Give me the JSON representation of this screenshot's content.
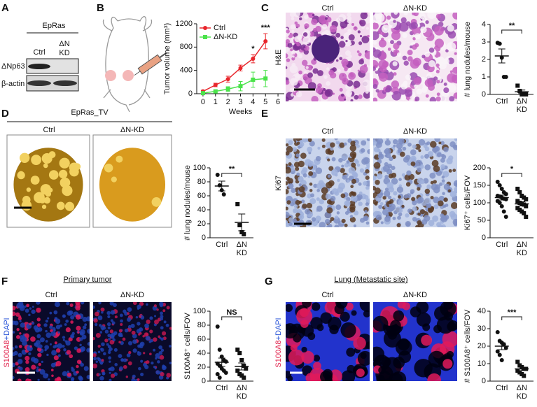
{
  "panel_labels": [
    "A",
    "B",
    "C",
    "D",
    "E",
    "F",
    "G"
  ],
  "blot": {
    "group": "EpRas",
    "lanes": [
      "Ctrl",
      "ΔN",
      "KD"
    ],
    "rows": [
      "ΔNp63",
      "β-actin"
    ]
  },
  "images": {
    "C": {
      "columns": [
        "Ctrl",
        "ΔN-KD"
      ],
      "side": "H&E"
    },
    "D": {
      "group": "EpRas_TV",
      "columns": [
        "Ctrl",
        "ΔN-KD"
      ]
    },
    "E": {
      "columns": [
        "Ctrl",
        "ΔN-KD"
      ],
      "side": "Ki67"
    },
    "F": {
      "title": "Primary tumor",
      "columns": [
        "Ctrl",
        "ΔN-KD"
      ],
      "side": [
        "S100A8",
        "+DAPI"
      ]
    },
    "G": {
      "title": "Lung (Metastatic site)",
      "columns": [
        "Ctrl",
        "ΔN-KD"
      ],
      "side": [
        "S100A8",
        "+DAPI"
      ]
    }
  },
  "chart_data": [
    {
      "type": "line",
      "x_label": "Weeks",
      "y_label": "Tumor volume (mm³)",
      "x": [
        0,
        1,
        2,
        3,
        4,
        5
      ],
      "xlim": [
        -0.5,
        6.5
      ],
      "xticks": [
        0,
        1,
        2,
        3,
        4,
        5,
        6
      ],
      "ylim": [
        0,
        1200
      ],
      "yticks": [
        0,
        400,
        800,
        1200
      ],
      "series": [
        {
          "name": "Ctrl",
          "color": "#e8262c",
          "marker": "circle",
          "values": [
            40,
            150,
            250,
            440,
            600,
            900
          ],
          "errors": [
            20,
            30,
            50,
            50,
            70,
            130
          ]
        },
        {
          "name": "ΔN-KD",
          "color": "#4be34b",
          "marker": "square",
          "values": [
            10,
            40,
            80,
            130,
            240,
            260
          ],
          "errors": [
            10,
            20,
            40,
            80,
            130,
            140
          ]
        }
      ],
      "annotations": [
        {
          "x": 4,
          "text": "*"
        },
        {
          "x": 5,
          "text": "***"
        }
      ]
    },
    {
      "type": "dot",
      "y_label": "# lung nodules/mouse",
      "categories": [
        "Ctrl",
        "ΔN KD"
      ],
      "ylim": [
        0,
        4
      ],
      "yticks": [
        0,
        1,
        2,
        3,
        4
      ],
      "significance": "**",
      "groups": [
        {
          "marker": "circle",
          "values": [
            2.95,
            2.9,
            2.1,
            1.0,
            1.0
          ],
          "mean": 2.2,
          "sem": 0.4
        },
        {
          "marker": "square",
          "values": [
            0.5,
            0.2,
            0,
            0,
            0
          ],
          "mean": 0.15,
          "sem": 0.1
        }
      ]
    },
    {
      "type": "dot",
      "y_label": "# lung nodules/mouse",
      "categories": [
        "Ctrl",
        "ΔN KD"
      ],
      "ylim": [
        0,
        100
      ],
      "yticks": [
        0,
        20,
        40,
        60,
        80,
        100
      ],
      "significance": "**",
      "groups": [
        {
          "marker": "circle",
          "values": [
            90,
            75,
            68,
            62
          ],
          "mean": 74,
          "sem": 7
        },
        {
          "marker": "square",
          "values": [
            48,
            18,
            8,
            5
          ],
          "mean": 22,
          "sem": 12
        }
      ]
    },
    {
      "type": "dot",
      "y_label": "Ki67⁺ cells/FOV",
      "categories": [
        "Ctrl",
        "ΔN KD"
      ],
      "ylim": [
        0,
        200
      ],
      "yticks": [
        0,
        50,
        100,
        150,
        200
      ],
      "significance": "*",
      "groups": [
        {
          "marker": "circle",
          "values": [
            160,
            150,
            140,
            130,
            125,
            120,
            118,
            115,
            112,
            110,
            105,
            100,
            90,
            75,
            60
          ],
          "mean": 115,
          "sem": 7
        },
        {
          "marker": "square",
          "values": [
            140,
            130,
            120,
            115,
            110,
            105,
            100,
            98,
            95,
            90,
            85,
            80,
            75,
            70,
            60
          ],
          "mean": 97,
          "sem": 6
        }
      ]
    },
    {
      "type": "dot",
      "y_label": "S100A8⁺ cells/FOV",
      "categories": [
        "Ctrl",
        "ΔN KD"
      ],
      "ylim": [
        0,
        100
      ],
      "yticks": [
        0,
        20,
        40,
        60,
        80,
        100
      ],
      "significance": "NS",
      "groups": [
        {
          "marker": "circle",
          "values": [
            78,
            45,
            35,
            30,
            28,
            25,
            22,
            18,
            15,
            12,
            10,
            5
          ],
          "mean": 27,
          "sem": 6
        },
        {
          "marker": "square",
          "values": [
            45,
            40,
            30,
            22,
            18,
            15,
            10,
            8,
            5
          ],
          "mean": 21,
          "sem": 5
        }
      ]
    },
    {
      "type": "dot",
      "y_label": "# S100A8⁺ cells/FOV",
      "categories": [
        "Ctrl",
        "ΔN KD"
      ],
      "ylim": [
        0,
        40
      ],
      "yticks": [
        0,
        10,
        20,
        30,
        40
      ],
      "significance": "***",
      "groups": [
        {
          "marker": "circle",
          "values": [
            28,
            23,
            22,
            21,
            19,
            17,
            15,
            12
          ],
          "mean": 20,
          "sem": 2
        },
        {
          "marker": "square",
          "values": [
            11,
            9,
            8,
            7,
            7,
            6,
            5,
            4,
            3
          ],
          "mean": 7,
          "sem": 1
        }
      ]
    }
  ]
}
